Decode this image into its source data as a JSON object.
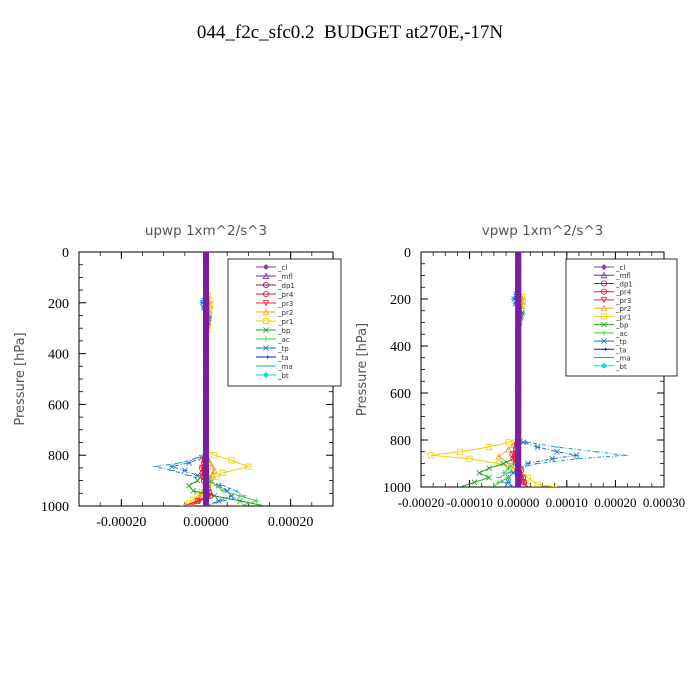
{
  "page": {
    "title": "044_f2c_sfc0.2  BUDGET at270E,-17N"
  },
  "colors": {
    "_cl": "#8a3ea8",
    "_mfl": "#7a1fa0",
    "_dp1": "#a0105a",
    "_pr4": "#e0102e",
    "_pr3": "#f0204a",
    "_pr2": "#f4a020",
    "_pr1": "#f0d000",
    "_bp": "#1ea01e",
    "_ac": "#40d040",
    "_tp": "#1e6fd0",
    "_ta": "#1010e0",
    "_ma": "#1aa0c8",
    "_bt": "#00dede"
  },
  "chart_data": [
    {
      "type": "line",
      "title": "upwp   1xm^2/s^3",
      "ylabel": "Pressure [hPa]",
      "xlabel": "",
      "xlim": [
        -0.0003,
        0.0003
      ],
      "ylim": [
        1000,
        0
      ],
      "y_inverted": true,
      "xticks": [
        -0.0002,
        0.0,
        0.0002
      ],
      "xtick_labels": [
        "-0.00020",
        "0.00000",
        "0.00020"
      ],
      "yticks": [
        0,
        200,
        400,
        600,
        800,
        1000
      ],
      "ytick_labels": [
        "0",
        "200",
        "400",
        "600",
        "800",
        "1000"
      ],
      "grid": false,
      "legend_position": "top-right",
      "legend": [
        "_cl",
        "_mfl",
        "_dp1",
        "_pr4",
        "_pr3",
        "_pr2",
        "_pr1",
        "_bp",
        "_ac",
        "_tp",
        "_ta",
        "_ma",
        "_bt"
      ],
      "series": [
        {
          "name": "_pr1",
          "p": [
            0,
            150,
            190,
            210,
            230,
            260,
            290,
            320,
            400,
            600,
            780,
            800,
            820,
            845,
            870,
            900,
            930,
            960,
            990,
            1000
          ],
          "v": [
            0,
            0,
            8e-06,
            1e-05,
            8e-06,
            6e-06,
            4e-06,
            0,
            0,
            0,
            0,
            2e-05,
            6e-05,
            0.0001,
            4e-05,
            1e-05,
            0,
            -2e-05,
            -4e-05,
            -6e-05
          ]
        },
        {
          "name": "_pr2",
          "p": [
            0,
            150,
            190,
            210,
            230,
            260,
            290,
            320,
            400,
            600,
            800,
            830,
            860,
            890,
            920,
            950,
            980,
            1000
          ],
          "v": [
            0,
            0,
            6e-06,
            9e-06,
            7e-06,
            5e-06,
            3e-06,
            0,
            0,
            0,
            0,
            1e-05,
            2e-05,
            1e-05,
            0,
            -1e-05,
            -2e-05,
            -3e-05
          ]
        },
        {
          "name": "_ma",
          "p": [
            0,
            170,
            190,
            200,
            220,
            240,
            260,
            280,
            300,
            600,
            790,
            810,
            830,
            845,
            860,
            880,
            900,
            920,
            940,
            960,
            980,
            1000
          ],
          "v": [
            0,
            0,
            -5e-06,
            -1e-05,
            -6e-06,
            3e-06,
            8e-06,
            5e-06,
            0,
            0,
            0,
            -2e-05,
            -6e-05,
            -0.00012,
            -8e-05,
            -4e-05,
            0,
            4e-05,
            7e-05,
            9e-05,
            4e-05,
            0.0
          ]
        },
        {
          "name": "_tp",
          "p": [
            0,
            170,
            190,
            200,
            220,
            240,
            260,
            280,
            300,
            600,
            790,
            810,
            830,
            845,
            860,
            880,
            900,
            920,
            940,
            960,
            980,
            1000
          ],
          "v": [
            0,
            0,
            -4e-06,
            -8e-06,
            -5e-06,
            2e-06,
            6e-06,
            4e-06,
            0,
            0,
            0,
            -1e-05,
            -4e-05,
            -8e-05,
            -5e-05,
            -2e-05,
            0,
            3e-05,
            5e-05,
            6e-05,
            3e-05,
            0.0
          ]
        },
        {
          "name": "_bp",
          "p": [
            0,
            800,
            850,
            880,
            900,
            920,
            940,
            960,
            980,
            1000
          ],
          "v": [
            0,
            0,
            0,
            -1e-05,
            -2e-05,
            -4e-05,
            -3e-05,
            2e-05,
            8e-05,
            0.00014
          ]
        },
        {
          "name": "_ac",
          "p": [
            0,
            800,
            850,
            900,
            940,
            960,
            980,
            1000
          ],
          "v": [
            0,
            0,
            0,
            1e-05,
            4e-05,
            8e-05,
            0.00012,
            8e-05
          ]
        },
        {
          "name": "_pr4",
          "p": [
            0,
            800,
            830,
            850,
            870,
            900,
            930,
            960,
            980,
            1000
          ],
          "v": [
            0,
            0,
            -5e-06,
            -1e-05,
            -8e-06,
            -5e-06,
            4e-06,
            1e-05,
            -2e-05,
            -5e-05
          ]
        },
        {
          "name": "_pr3",
          "p": [
            0,
            800,
            830,
            850,
            870,
            900,
            930,
            960,
            980,
            1000
          ],
          "v": [
            0,
            0,
            -4e-06,
            -8e-06,
            -6e-06,
            -3e-06,
            3e-06,
            8e-06,
            -1.5e-05,
            -4e-05
          ]
        },
        {
          "name": "_dp1",
          "p": [
            0,
            1000
          ],
          "v": [
            0,
            0
          ]
        },
        {
          "name": "_mfl",
          "p": [
            0,
            1000
          ],
          "v": [
            0,
            0
          ]
        },
        {
          "name": "_cl",
          "p": [
            0,
            1000
          ],
          "v": [
            0,
            0
          ]
        }
      ]
    },
    {
      "type": "line",
      "title": "vpwp   1xm^2/s^3",
      "ylabel": "Pressure [hPa]",
      "xlabel": "",
      "xlim": [
        -0.0002,
        0.0003
      ],
      "ylim": [
        1000,
        0
      ],
      "y_inverted": true,
      "xticks": [
        -0.0002,
        -0.0001,
        0.0,
        0.0001,
        0.0002,
        0.0003
      ],
      "xtick_labels": [
        "-0.00020",
        "-0.00010",
        "0.00000",
        "0.00010",
        "0.00020",
        "0.00030"
      ],
      "yticks": [
        0,
        200,
        400,
        600,
        800,
        1000
      ],
      "ytick_labels": [
        "0",
        "200",
        "400",
        "600",
        "800",
        "1000"
      ],
      "grid": false,
      "legend_position": "top-right",
      "legend": [
        "_cl",
        "_mfl",
        "_dp1",
        "_pr4",
        "_pr3",
        "_pr2",
        "_pr1",
        "_bp",
        "_ac",
        "_tp",
        "_ta",
        "_ma",
        "_bt"
      ],
      "series": [
        {
          "name": "_pr1",
          "p": [
            0,
            170,
            190,
            210,
            230,
            250,
            270,
            300,
            330,
            600,
            790,
            810,
            830,
            850,
            865,
            880,
            900,
            930,
            960,
            990,
            1000
          ],
          "v": [
            0,
            0,
            8e-06,
            1e-05,
            8e-06,
            6e-06,
            4e-06,
            2e-06,
            0,
            0,
            0,
            -2e-05,
            -6e-05,
            -0.00012,
            -0.00018,
            -0.0001,
            -4e-05,
            0,
            2e-05,
            4e-05,
            8e-05
          ]
        },
        {
          "name": "_pr2",
          "p": [
            0,
            170,
            190,
            210,
            230,
            250,
            270,
            300,
            330,
            600,
            800,
            840,
            870,
            900,
            940,
            970,
            1000
          ],
          "v": [
            0,
            0,
            6e-06,
            8e-06,
            6e-06,
            4e-06,
            3e-06,
            2e-06,
            0,
            0,
            0,
            -2e-05,
            -4e-05,
            -2e-05,
            0,
            1e-05,
            3e-05
          ]
        },
        {
          "name": "_ma",
          "p": [
            0,
            160,
            180,
            200,
            220,
            240,
            260,
            280,
            300,
            320,
            600,
            790,
            810,
            830,
            850,
            865,
            880,
            900,
            920,
            940,
            960,
            980,
            1000
          ],
          "v": [
            0,
            0,
            -5e-06,
            -1e-05,
            -6e-06,
            4e-06,
            1e-05,
            6e-06,
            2e-06,
            0,
            0,
            0,
            2e-05,
            8e-05,
            0.00016,
            0.00022,
            0.00012,
            4e-05,
            0,
            -2e-05,
            -4e-05,
            -3e-05,
            -1e-05
          ]
        },
        {
          "name": "_tp",
          "p": [
            0,
            160,
            180,
            200,
            220,
            240,
            260,
            280,
            300,
            320,
            600,
            790,
            810,
            830,
            850,
            865,
            880,
            900,
            920,
            940,
            960,
            980,
            1000
          ],
          "v": [
            0,
            0,
            -4e-06,
            -8e-06,
            -5e-06,
            3e-06,
            8e-06,
            5e-06,
            2e-06,
            0,
            0,
            0,
            1e-05,
            4e-05,
            8e-05,
            0.00012,
            7e-05,
            2e-05,
            0,
            -1e-05,
            -2e-05,
            -2e-05,
            -1e-05
          ]
        },
        {
          "name": "_bp",
          "p": [
            0,
            800,
            850,
            880,
            900,
            920,
            940,
            960,
            980,
            1000
          ],
          "v": [
            0,
            0,
            0,
            -1e-05,
            -3e-05,
            -6e-05,
            -8e-05,
            -6e-05,
            -9e-05,
            -0.00012
          ]
        },
        {
          "name": "_ac",
          "p": [
            0,
            800,
            850,
            900,
            940,
            960,
            980,
            1000
          ],
          "v": [
            0,
            0,
            0,
            -1e-05,
            -3e-05,
            -2e-05,
            -4e-05,
            -5e-05
          ]
        },
        {
          "name": "_pr4",
          "p": [
            0,
            800,
            840,
            860,
            880,
            900,
            930,
            960,
            980,
            1000
          ],
          "v": [
            0,
            0,
            -5e-06,
            -1.2e-05,
            -1e-05,
            -4e-06,
            6e-06,
            1e-05,
            1.2e-05,
            2e-05
          ]
        },
        {
          "name": "_pr3",
          "p": [
            0,
            800,
            840,
            860,
            880,
            900,
            930,
            960,
            980,
            1000
          ],
          "v": [
            0,
            0,
            -4e-06,
            -1e-05,
            -8e-06,
            -3e-06,
            5e-06,
            8e-06,
            1e-05,
            1.6e-05
          ]
        },
        {
          "name": "_dp1",
          "p": [
            0,
            1000
          ],
          "v": [
            0,
            0
          ]
        },
        {
          "name": "_mfl",
          "p": [
            0,
            1000
          ],
          "v": [
            0,
            0
          ]
        },
        {
          "name": "_cl",
          "p": [
            0,
            1000
          ],
          "v": [
            0,
            0
          ]
        }
      ]
    }
  ]
}
